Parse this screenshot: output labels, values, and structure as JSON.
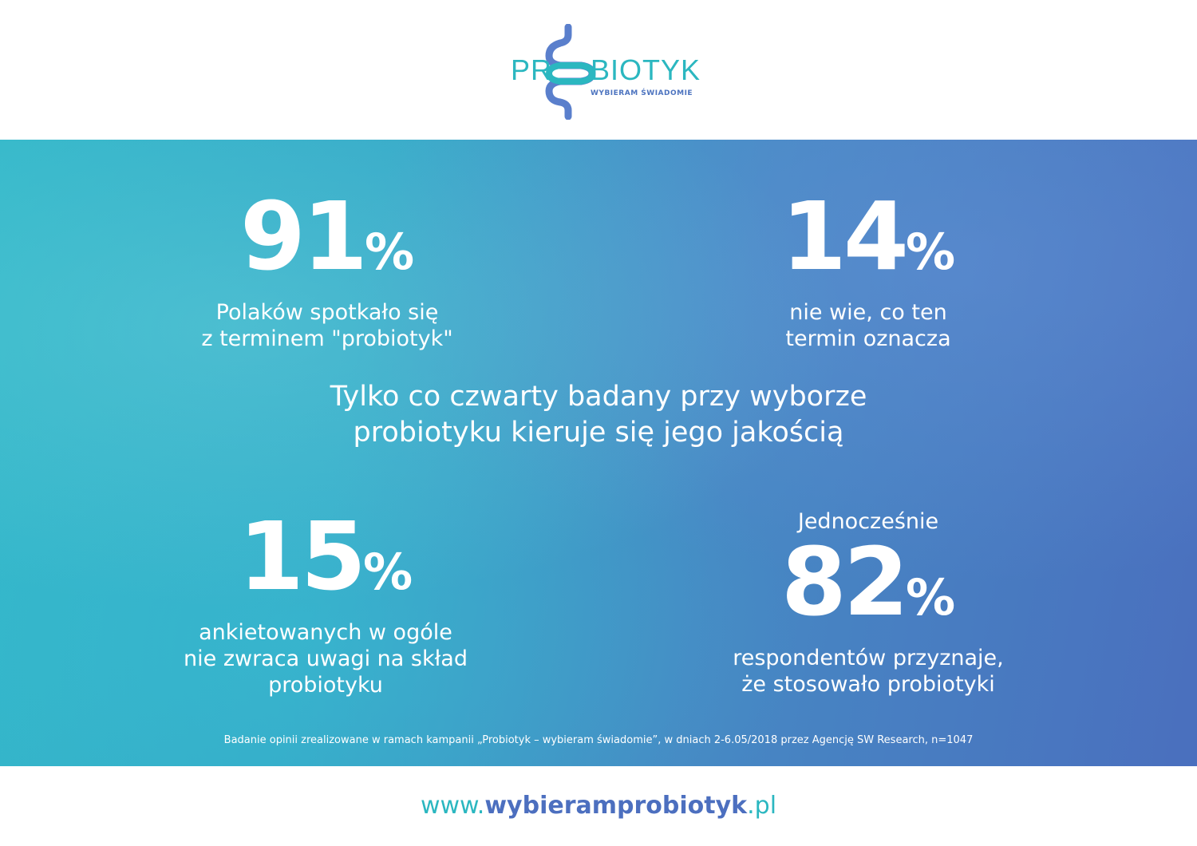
{
  "logo": {
    "text_left": "PR",
    "text_right": "BIOTYK",
    "tagline": "WYBIERAM ŚWIADOMIE",
    "colors": {
      "teal": "#2bb7c0",
      "blue": "#4c73bf"
    }
  },
  "stats": [
    {
      "value": "91",
      "unit": "%",
      "lines": [
        "Polaków spotkało się",
        "z terminem \"probiotyk\""
      ]
    },
    {
      "value": "14",
      "unit": "%",
      "lines": [
        "nie wie, co ten",
        "termin oznacza"
      ]
    },
    {
      "value": "15",
      "unit": "%",
      "lines": [
        "ankietowanych w ogóle",
        "nie zwraca uwagi na skład",
        "probiotyku"
      ]
    },
    {
      "intro": "Jednocześnie",
      "value": "82",
      "unit": "%",
      "lines": [
        "respondentów przyznaje,",
        "że stosowało probiotyki"
      ]
    }
  ],
  "headline": [
    "Tylko co czwarty badany przy wyborze",
    "probiotyku kieruje się jego jakością"
  ],
  "footnote": "Badanie opinii zrealizowane w ramach kampanii „Probiotyk – wybieram świadomie”, w dniach 2-6.05/2018 przez Agencję SW Research, n=1047",
  "url": {
    "prefix": "www.",
    "domain": "wybieramprobiotyk",
    "tld": ".pl"
  }
}
